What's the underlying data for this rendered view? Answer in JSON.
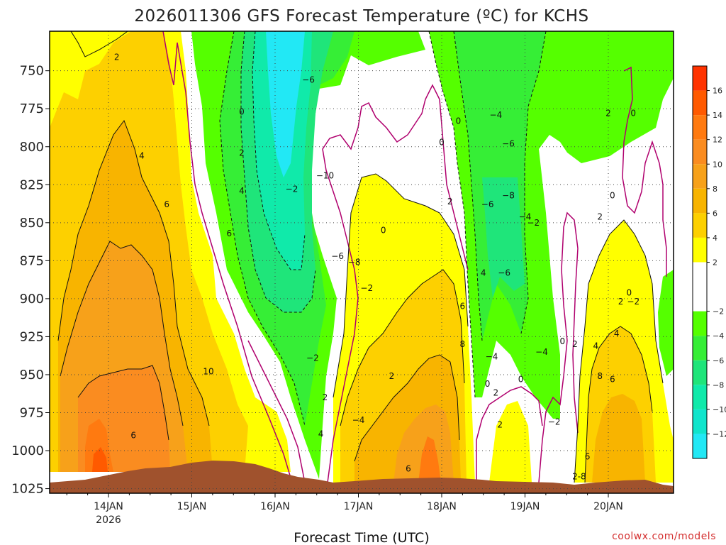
{
  "title": "2026011306 GFS Forecast Temperature (ºC) for KCHS",
  "credit": "coolwx.com/models",
  "chart_data": {
    "type": "contour",
    "title": "2026011306 GFS Forecast Temperature (ºC) for KCHS",
    "xlabel": "Forecast Time (UTC)",
    "ylabel": "",
    "x_ticks": [
      "14JAN",
      "15JAN",
      "16JAN",
      "17JAN",
      "18JAN",
      "19JAN",
      "20JAN"
    ],
    "x_tick_sub": "2026",
    "y_axis": "pressure (hPa), inverted",
    "y_ticks": [
      750,
      775,
      800,
      825,
      850,
      875,
      900,
      925,
      950,
      975,
      1000,
      1025
    ],
    "ylim": [
      724,
      1028
    ],
    "grid": "dotted",
    "colorbar": {
      "bands": [
        {
          "from": 16,
          "to": 18,
          "color": "#ff3300"
        },
        {
          "from": 14,
          "to": 16,
          "color": "#ff5a00"
        },
        {
          "from": 12,
          "to": 14,
          "color": "#ff7a10"
        },
        {
          "from": 10,
          "to": 12,
          "color": "#fa8c20"
        },
        {
          "from": 8,
          "to": 10,
          "color": "#f7a11a"
        },
        {
          "from": 6,
          "to": 8,
          "color": "#f8b400"
        },
        {
          "from": 4,
          "to": 6,
          "color": "#fdd000"
        },
        {
          "from": 2,
          "to": 4,
          "color": "#ffff00"
        },
        {
          "from": -2,
          "to": 2,
          "color": "#ffffff"
        },
        {
          "from": -4,
          "to": -2,
          "color": "#55ff00"
        },
        {
          "from": -6,
          "to": -4,
          "color": "#36ee36"
        },
        {
          "from": -8,
          "to": -6,
          "color": "#1fe57a"
        },
        {
          "from": -10,
          "to": -8,
          "color": "#10eaaa"
        },
        {
          "from": -12,
          "to": -10,
          "color": "#10e5cc"
        },
        {
          "from": -14,
          "to": -12,
          "color": "#22e8f5"
        }
      ],
      "labels": [
        "16",
        "14",
        "12",
        "10",
        "8",
        "6",
        "4",
        "2",
        "−2",
        "−4",
        "−6",
        "−8",
        "−10",
        "−12"
      ]
    },
    "contour_labels": [
      {
        "t": "2",
        "x": 0.1,
        "p": 741
      },
      {
        "t": "4",
        "x": 0.4,
        "p": 806
      },
      {
        "t": "6",
        "x": 0.7,
        "p": 838
      },
      {
        "t": "10",
        "x": 1.2,
        "p": 948
      },
      {
        "t": "6",
        "x": 0.3,
        "p": 990
      },
      {
        "t": "6",
        "x": 1.45,
        "p": 857
      },
      {
        "t": "0",
        "x": 1.6,
        "p": 777
      },
      {
        "t": "2",
        "x": 1.6,
        "p": 804
      },
      {
        "t": "4",
        "x": 1.6,
        "p": 829
      },
      {
        "t": "−6",
        "x": 2.4,
        "p": 756
      },
      {
        "t": "−2",
        "x": 2.2,
        "p": 828
      },
      {
        "t": "−10",
        "x": 2.6,
        "p": 819
      },
      {
        "t": "−6",
        "x": 2.75,
        "p": 872
      },
      {
        "t": "−8",
        "x": 2.95,
        "p": 876
      },
      {
        "t": "0",
        "x": 3.3,
        "p": 855
      },
      {
        "t": "−2",
        "x": 3.1,
        "p": 893
      },
      {
        "t": "−2",
        "x": 2.45,
        "p": 939
      },
      {
        "t": "2",
        "x": 2.6,
        "p": 965
      },
      {
        "t": "4",
        "x": 2.55,
        "p": 989
      },
      {
        "t": "−4",
        "x": 3.0,
        "p": 980
      },
      {
        "t": "2",
        "x": 3.4,
        "p": 951
      },
      {
        "t": "6",
        "x": 3.6,
        "p": 1012
      },
      {
        "t": "0",
        "x": 4.0,
        "p": 797
      },
      {
        "t": "0",
        "x": 4.2,
        "p": 783
      },
      {
        "t": "2",
        "x": 4.1,
        "p": 836
      },
      {
        "t": "4",
        "x": 4.5,
        "p": 883
      },
      {
        "t": "6",
        "x": 4.25,
        "p": 905
      },
      {
        "t": "8",
        "x": 4.25,
        "p": 930
      },
      {
        "t": "0",
        "x": 4.55,
        "p": 956
      },
      {
        "t": "−4",
        "x": 4.65,
        "p": 779
      },
      {
        "t": "−6",
        "x": 4.8,
        "p": 798
      },
      {
        "t": "−6",
        "x": 4.55,
        "p": 838
      },
      {
        "t": "−8",
        "x": 4.8,
        "p": 832
      },
      {
        "t": "−4",
        "x": 5.0,
        "p": 846
      },
      {
        "t": "−2",
        "x": 5.1,
        "p": 850
      },
      {
        "t": "−6",
        "x": 4.75,
        "p": 883
      },
      {
        "t": "−4",
        "x": 4.6,
        "p": 938
      },
      {
        "t": "2",
        "x": 4.65,
        "p": 962
      },
      {
        "t": "2",
        "x": 4.7,
        "p": 983
      },
      {
        "t": "0",
        "x": 4.95,
        "p": 953
      },
      {
        "t": "−4",
        "x": 5.2,
        "p": 935
      },
      {
        "t": "−2",
        "x": 5.35,
        "p": 981
      },
      {
        "t": "0",
        "x": 5.45,
        "p": 928
      },
      {
        "t": "2",
        "x": 5.6,
        "p": 930
      },
      {
        "t": "2",
        "x": 6.0,
        "p": 778
      },
      {
        "t": "0",
        "x": 6.3,
        "p": 778
      },
      {
        "t": "0",
        "x": 6.05,
        "p": 832
      },
      {
        "t": "2",
        "x": 5.9,
        "p": 846
      },
      {
        "t": "4",
        "x": 5.85,
        "p": 931
      },
      {
        "t": "4",
        "x": 6.1,
        "p": 923
      },
      {
        "t": "2",
        "x": 6.15,
        "p": 902
      },
      {
        "t": "0",
        "x": 6.25,
        "p": 896
      },
      {
        "t": "8",
        "x": 5.9,
        "p": 951
      },
      {
        "t": "6",
        "x": 6.05,
        "p": 953
      },
      {
        "t": "6",
        "x": 5.75,
        "p": 1004
      },
      {
        "t": "2-8",
        "x": 5.65,
        "p": 1017
      },
      {
        "t": "−2",
        "x": 6.3,
        "p": 902
      }
    ]
  }
}
